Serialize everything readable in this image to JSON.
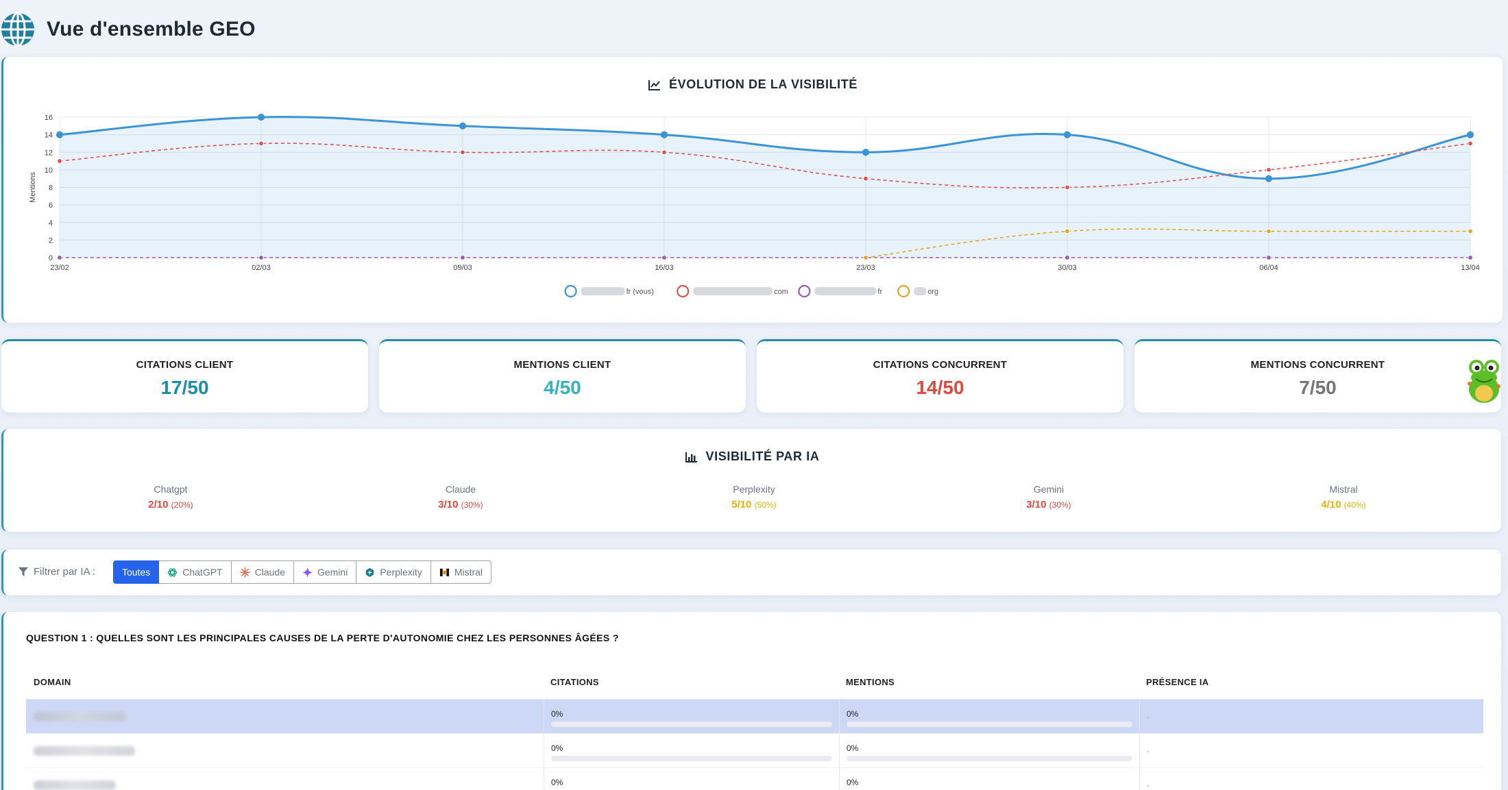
{
  "header": {
    "title": "Vue d'ensemble GEO",
    "icon": "globe-icon"
  },
  "visibility_chart": {
    "title": "ÉVOLUTION DE LA VISIBILITÉ",
    "icon": "chart-line-icon",
    "chart_data": {
      "type": "line",
      "x": [
        "23/02",
        "02/03",
        "09/03",
        "16/03",
        "23/03",
        "30/03",
        "06/04",
        "13/04"
      ],
      "ylabel": "Mentions",
      "ylim": [
        0,
        16
      ],
      "yticks": [
        0,
        2,
        4,
        6,
        8,
        10,
        12,
        14,
        16
      ],
      "grid": true,
      "legend": "bottom",
      "series": [
        {
          "name": "fr (vous)",
          "color": "#3b94d4",
          "style": "solid",
          "fill": true,
          "values": [
            14,
            16,
            15,
            14,
            12,
            14,
            9,
            14
          ]
        },
        {
          "name": "com",
          "color": "#e05252",
          "style": "dashed",
          "values": [
            11,
            13,
            12,
            12,
            9,
            8,
            10,
            13
          ]
        },
        {
          "name": "fr",
          "color": "#9b59b6",
          "style": "dashed",
          "values": [
            0,
            0,
            0,
            0,
            0,
            0,
            0,
            0
          ]
        },
        {
          "name": "org",
          "color": "#e6a52a",
          "style": "dashed",
          "values": [
            null,
            null,
            null,
            null,
            0,
            3,
            3,
            3
          ]
        }
      ]
    }
  },
  "stats": [
    {
      "label": "CITATIONS CLIENT",
      "value": "17/50",
      "color": "#1a8ea8"
    },
    {
      "label": "MENTIONS CLIENT",
      "value": "4/50",
      "color": "#33b0c2"
    },
    {
      "label": "CITATIONS CONCURRENT",
      "value": "14/50",
      "color": "#e0473d"
    },
    {
      "label": "MENTIONS CONCURRENT",
      "value": "7/50",
      "color": "#757575"
    }
  ],
  "ai_visibility": {
    "title": "VISIBILITÉ PAR IA",
    "icon": "bar-chart-icon",
    "items": [
      {
        "name": "Chatgpt",
        "score": "2/10",
        "pct": "(20%)",
        "color": "#e0473d"
      },
      {
        "name": "Claude",
        "score": "3/10",
        "pct": "(30%)",
        "color": "#e0473d"
      },
      {
        "name": "Perplexity",
        "score": "5/10",
        "pct": "(50%)",
        "color": "#eab308"
      },
      {
        "name": "Gemini",
        "score": "3/10",
        "pct": "(30%)",
        "color": "#e0473d"
      },
      {
        "name": "Mistral",
        "score": "4/10",
        "pct": "(40%)",
        "color": "#eab308"
      }
    ]
  },
  "filter": {
    "label": "Filtrer par IA :",
    "options": [
      {
        "label": "Toutes",
        "icon": "",
        "active": true
      },
      {
        "label": "ChatGPT",
        "icon": "chatgpt-icon"
      },
      {
        "label": "Claude",
        "icon": "claude-icon"
      },
      {
        "label": "Gemini",
        "icon": "gemini-icon"
      },
      {
        "label": "Perplexity",
        "icon": "perplexity-icon"
      },
      {
        "label": "Mistral",
        "icon": "mistral-icon"
      }
    ]
  },
  "question": {
    "title": "QUESTION 1 : QUELLES SONT LES PRINCIPALES CAUSES DE LA PERTE D'AUTONOMIE CHEZ LES PERSONNES ÂGÉES ?",
    "columns": [
      "DOMAIN",
      "CITATIONS",
      "MENTIONS",
      "PRÉSENCE IA"
    ],
    "rows": [
      {
        "citations": "0%",
        "mentions": "0%",
        "presence": "-",
        "citations_fill": 0,
        "mentions_fill": 0
      },
      {
        "citations": "0%",
        "mentions": "0%",
        "presence": "-",
        "citations_fill": 0,
        "mentions_fill": 0
      },
      {
        "citations": "0%",
        "mentions": "0%",
        "presence": "-",
        "citations_fill": 0,
        "mentions_fill": 0
      }
    ]
  }
}
